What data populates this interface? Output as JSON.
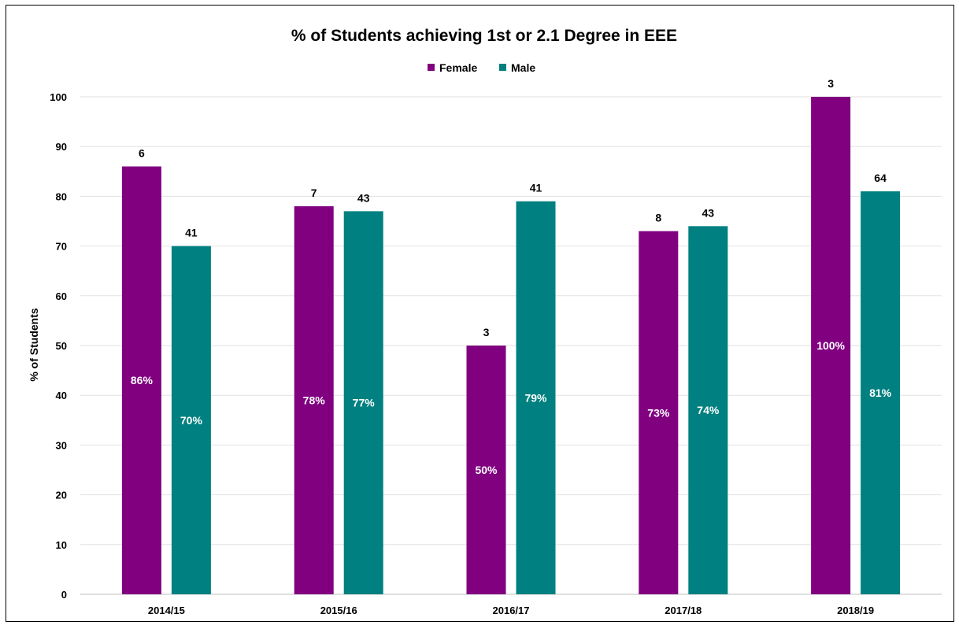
{
  "chart_data": {
    "type": "bar",
    "title": "% of Students achieving 1st or 2.1 Degree in EEE",
    "ylabel": "% of Students",
    "xlabel": "",
    "ylim": [
      0,
      100
    ],
    "yticks": [
      "0",
      "10",
      "20",
      "30",
      "40",
      "50",
      "60",
      "70",
      "80",
      "90",
      "100"
    ],
    "grid": true,
    "legend_position": "top-center",
    "categories": [
      "2014/15",
      "2015/16",
      "2016/17",
      "2017/18",
      "2018/19"
    ],
    "series": [
      {
        "name": "Female",
        "color": "#800080",
        "values": [
          86,
          78,
          50,
          73,
          100
        ],
        "value_labels": [
          "86%",
          "78%",
          "50%",
          "73%",
          "100%"
        ],
        "count_labels": [
          "6",
          "7",
          "3",
          "8",
          "3"
        ]
      },
      {
        "name": "Male",
        "color": "#008080",
        "values": [
          70,
          77,
          79,
          74,
          81
        ],
        "value_labels": [
          "70%",
          "77%",
          "79%",
          "74%",
          "81%"
        ],
        "count_labels": [
          "41",
          "43",
          "41",
          "43",
          "64"
        ]
      }
    ]
  }
}
